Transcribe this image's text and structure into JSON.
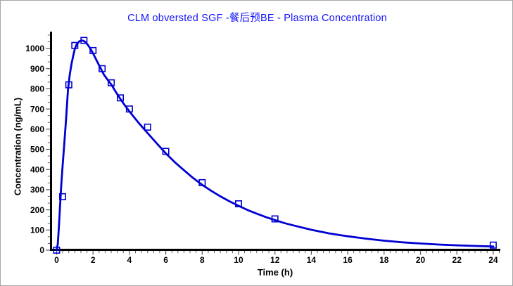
{
  "window": {
    "background": "#ffffff",
    "border_color": "#a6a6a6"
  },
  "chart_data": {
    "type": "line",
    "title": "CLM obversted SGF -餐后预BE - Plasma Concentration",
    "xlabel": "Time (h)",
    "ylabel": "Concentration (ng/mL)",
    "xlim": [
      0,
      24.4
    ],
    "ylim": [
      0,
      1084
    ],
    "x_major_ticks": [
      0,
      2,
      4,
      6,
      8,
      10,
      12,
      14,
      16,
      18,
      20,
      22,
      24
    ],
    "x_minor_interval": 0.3333,
    "y_major_ticks": [
      0,
      100,
      200,
      300,
      400,
      500,
      600,
      700,
      800,
      900,
      1000
    ],
    "y_minor_interval": 33.333,
    "grid": false,
    "legend": null,
    "colors": {
      "curve": "#0000d2",
      "marker": "#0000d2",
      "title": "#1414ff",
      "axis": "#000000",
      "tick": "#5a5a5a"
    },
    "series": [
      {
        "name": "observed-points",
        "style": "scatter-open-square",
        "x": [
          0,
          0.33,
          0.67,
          1,
          1.5,
          2,
          2.5,
          3,
          3.5,
          4,
          5,
          6,
          8,
          10,
          12,
          24
        ],
        "y": [
          0,
          265,
          820,
          1015,
          1040,
          990,
          900,
          830,
          755,
          700,
          610,
          490,
          335,
          230,
          155,
          25
        ]
      },
      {
        "name": "fitted-curve",
        "style": "line",
        "x": [
          0,
          0.06,
          0.12,
          0.18,
          0.25,
          0.33,
          0.42,
          0.52,
          0.62,
          0.72,
          0.82,
          0.92,
          1.0,
          1.1,
          1.25,
          1.4,
          1.55,
          1.7,
          1.85,
          2.0,
          2.2,
          2.4,
          2.6,
          2.8,
          3.0,
          3.25,
          3.5,
          3.75,
          4.0,
          4.25,
          4.5,
          4.75,
          5.0,
          5.5,
          6.0,
          6.5,
          7.0,
          7.5,
          8.0,
          8.5,
          9.0,
          9.5,
          10,
          10.5,
          11,
          11.5,
          12,
          12.5,
          13,
          14,
          15,
          16,
          17,
          18,
          19,
          20,
          21,
          22,
          23,
          24
        ],
        "y": [
          0,
          30,
          110,
          210,
          320,
          420,
          530,
          650,
          790,
          870,
          925,
          968,
          998,
          1020,
          1036,
          1040,
          1034,
          1020,
          1000,
          976,
          940,
          905,
          870,
          845,
          822,
          785,
          750,
          718,
          688,
          660,
          632,
          606,
          580,
          530,
          480,
          436,
          396,
          358,
          324,
          294,
          267,
          242,
          220,
          199,
          181,
          164,
          149,
          135,
          123,
          101,
          83,
          69,
          57,
          47,
          39,
          33,
          28,
          24,
          21,
          18
        ]
      }
    ]
  }
}
